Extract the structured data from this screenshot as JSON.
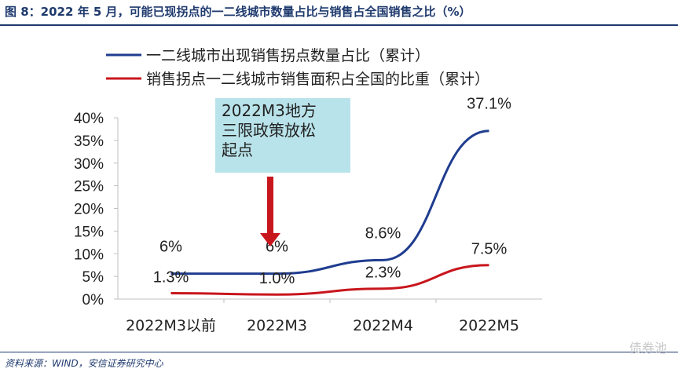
{
  "title": "图 8：2022 年 5 月，可能已现拐点的一二线城市数量占比与销售占全国销售之比（%）",
  "source": "资料来源：WIND，安信证券研究中心",
  "watermark": "债券池",
  "callout_lines": [
    "2022M3地方",
    "三限政策放松",
    "起点"
  ],
  "colors": {
    "series1": "#1f3c8f",
    "series2": "#c8161d",
    "arrow": "#c8161d",
    "callout_bg": "#b9e3ea"
  },
  "chart_data": {
    "type": "line",
    "categories": [
      "2022M3以前",
      "2022M3",
      "2022M4",
      "2022M5"
    ],
    "ylim": [
      0,
      40
    ],
    "yticks": [
      "0%",
      "5%",
      "10%",
      "15%",
      "20%",
      "25%",
      "30%",
      "35%",
      "40%"
    ],
    "legend_position": "top",
    "grid": false,
    "series": [
      {
        "name": "一二线城市出现销售拐点数量占比（累计）",
        "values": [
          5.6,
          5.6,
          8.6,
          37.1
        ],
        "labels": [
          "6%",
          "6%",
          "8.6%",
          "37.1%"
        ]
      },
      {
        "name": "销售拐点一二线城市销售面积占全国的比重（累计）",
        "values": [
          1.3,
          1.0,
          2.3,
          7.5
        ],
        "labels": [
          "1.3%",
          "1.0%",
          "2.3%",
          "7.5%"
        ]
      }
    ]
  }
}
